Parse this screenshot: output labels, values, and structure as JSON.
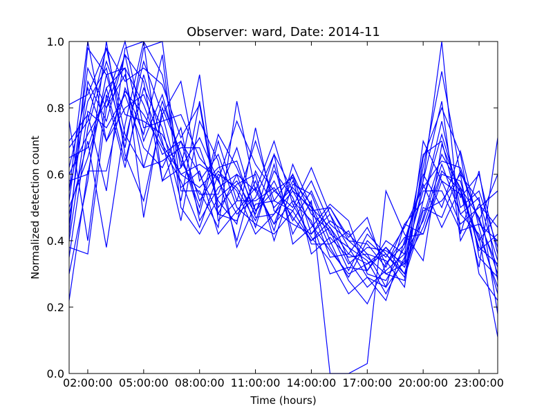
{
  "chart_data": {
    "type": "line",
    "title": "Observer: ward, Date: 2014-11",
    "xlabel": "Time (hours)",
    "ylabel": "Normalized detection count",
    "xlim": [
      1.0,
      24.0
    ],
    "ylim": [
      0.0,
      1.0
    ],
    "x_ticks": [
      2,
      5,
      8,
      11,
      14,
      17,
      20,
      23
    ],
    "x_tick_labels": [
      "02:00:00",
      "05:00:00",
      "08:00:00",
      "11:00:00",
      "14:00:00",
      "17:00:00",
      "20:00:00",
      "23:00:00"
    ],
    "y_ticks": [
      0.0,
      0.2,
      0.4,
      0.6,
      0.8,
      1.0
    ],
    "y_tick_labels": [
      "0.0",
      "0.2",
      "0.4",
      "0.6",
      "0.8",
      "1.0"
    ],
    "grid": false,
    "legend": "none",
    "line_color": "#0000ff",
    "x": [
      1,
      2,
      3,
      4,
      5,
      6,
      7,
      8,
      9,
      10,
      11,
      12,
      13,
      14,
      15,
      16,
      17,
      18,
      19,
      20,
      21,
      22,
      23,
      24
    ],
    "series": [
      {
        "values": [
          0.81,
          0.84,
          0.98,
          0.88,
          0.92,
          0.87,
          0.71,
          0.81,
          0.48,
          0.6,
          0.55,
          0.45,
          0.6,
          0.42,
          0.5,
          0.4,
          0.35,
          0.3,
          0.33,
          0.44,
          0.61,
          0.55,
          0.4,
          0.48
        ]
      },
      {
        "values": [
          0.6,
          0.72,
          0.82,
          1.0,
          0.74,
          0.76,
          0.78,
          0.65,
          0.58,
          0.48,
          0.53,
          0.66,
          0.55,
          0.5,
          0.44,
          0.36,
          0.33,
          0.38,
          0.3,
          0.52,
          0.76,
          0.5,
          0.55,
          0.38
        ]
      },
      {
        "values": [
          0.42,
          0.98,
          0.9,
          0.92,
          0.81,
          0.66,
          0.7,
          0.52,
          0.61,
          0.55,
          0.42,
          0.48,
          0.58,
          0.51,
          0.38,
          0.29,
          0.4,
          0.35,
          0.44,
          0.56,
          0.64,
          0.62,
          0.46,
          0.32
        ]
      },
      {
        "values": [
          0.7,
          0.78,
          0.55,
          0.98,
          1.0,
          0.9,
          0.62,
          0.71,
          0.58,
          0.76,
          0.63,
          0.55,
          0.5,
          0.62,
          0.48,
          0.34,
          0.26,
          0.31,
          0.36,
          0.66,
          0.7,
          0.48,
          0.42,
          0.26
        ]
      },
      {
        "values": [
          0.5,
          0.65,
          0.86,
          0.92,
          0.47,
          0.8,
          0.66,
          0.5,
          0.72,
          0.62,
          0.49,
          0.58,
          0.46,
          0.55,
          0.42,
          0.38,
          0.29,
          0.22,
          0.4,
          0.58,
          0.82,
          0.4,
          0.51,
          0.44
        ]
      },
      {
        "values": [
          0.38,
          0.36,
          0.8,
          0.96,
          0.88,
          0.58,
          0.62,
          0.9,
          0.46,
          0.52,
          0.7,
          0.52,
          0.6,
          0.48,
          0.43,
          0.31,
          0.42,
          0.36,
          0.29,
          0.47,
          0.66,
          0.56,
          0.38,
          0.33
        ]
      },
      {
        "values": [
          0.55,
          0.82,
          0.92,
          0.68,
          0.98,
          1.0,
          0.55,
          0.55,
          0.44,
          0.82,
          0.55,
          0.7,
          0.51,
          0.41,
          0.34,
          0.24,
          0.29,
          0.26,
          0.34,
          0.62,
          0.91,
          0.6,
          0.3,
          0.22
        ]
      },
      {
        "values": [
          0.62,
          0.86,
          0.7,
          0.8,
          0.84,
          0.69,
          0.6,
          0.63,
          0.59,
          0.4,
          0.61,
          0.5,
          0.56,
          0.49,
          0.5,
          0.41,
          0.47,
          0.3,
          0.28,
          0.7,
          0.58,
          0.45,
          0.5,
          0.55
        ]
      },
      {
        "values": [
          0.3,
          0.58,
          1.0,
          0.66,
          0.52,
          0.78,
          0.88,
          0.58,
          0.66,
          0.5,
          0.45,
          0.42,
          0.49,
          0.58,
          0.45,
          0.4,
          0.39,
          0.32,
          0.45,
          0.52,
          0.72,
          0.53,
          0.6,
          0.36
        ]
      },
      {
        "values": [
          0.22,
          0.61,
          0.61,
          0.86,
          0.72,
          0.96,
          0.5,
          0.42,
          0.53,
          0.58,
          0.48,
          0.66,
          0.39,
          0.44,
          0.51,
          0.46,
          0.3,
          0.28,
          0.38,
          0.6,
          0.5,
          0.67,
          0.44,
          0.24
        ]
      },
      {
        "values": [
          0.48,
          0.7,
          0.38,
          0.75,
          1.0,
          0.58,
          0.7,
          0.6,
          0.48,
          0.46,
          0.58,
          0.43,
          0.63,
          0.5,
          0.35,
          0.36,
          0.44,
          0.33,
          0.41,
          0.42,
          0.6,
          0.58,
          0.37,
          0.42
        ]
      },
      {
        "values": [
          0.76,
          0.4,
          0.84,
          0.62,
          0.9,
          0.7,
          0.46,
          0.76,
          0.64,
          0.38,
          0.51,
          0.52,
          0.49,
          0.4,
          0.44,
          0.33,
          0.38,
          0.37,
          0.33,
          0.57,
          0.44,
          0.56,
          0.47,
          0.3
        ]
      },
      {
        "values": [
          0.55,
          1.0,
          0.7,
          0.85,
          0.78,
          0.68,
          0.58,
          0.44,
          0.6,
          0.56,
          0.46,
          0.61,
          0.53,
          0.39,
          0.39,
          0.43,
          0.31,
          0.4,
          0.36,
          0.46,
          0.63,
          0.48,
          0.53,
          0.18
        ]
      },
      {
        "values": [
          0.68,
          0.76,
          0.98,
          0.72,
          0.62,
          0.64,
          0.68,
          0.68,
          0.52,
          0.45,
          0.74,
          0.49,
          0.45,
          0.42,
          0.48,
          0.38,
          0.34,
          0.24,
          0.35,
          0.55,
          0.55,
          0.43,
          0.45,
          0.4
        ]
      },
      {
        "values": [
          0.45,
          0.88,
          0.76,
          0.96,
          0.7,
          0.84,
          0.64,
          0.54,
          0.54,
          0.68,
          0.49,
          0.55,
          0.59,
          0.36,
          0.41,
          0.35,
          0.36,
          0.34,
          0.26,
          0.65,
          0.8,
          0.66,
          0.35,
          0.29
        ]
      },
      {
        "values": [
          0.58,
          0.6,
          0.9,
          0.7,
          0.94,
          0.78,
          0.56,
          0.61,
          0.42,
          0.49,
          0.56,
          0.45,
          0.52,
          0.46,
          0.3,
          0.32,
          0.31,
          0.38,
          0.32,
          0.5,
          0.47,
          0.61,
          0.46,
          0.6
        ]
      },
      {
        "values": [
          0.4,
          0.79,
          0.74,
          0.84,
          0.68,
          0.62,
          0.74,
          0.46,
          0.56,
          0.6,
          0.44,
          0.63,
          0.42,
          0.52,
          0.0,
          0.0,
          0.03,
          0.55,
          0.42,
          0.34,
          0.69,
          0.55,
          0.32,
          0.71
        ]
      },
      {
        "values": [
          0.65,
          0.68,
          0.86,
          0.64,
          0.86,
          0.74,
          0.52,
          0.82,
          0.5,
          0.57,
          0.6,
          0.4,
          0.57,
          0.54,
          0.4,
          0.28,
          0.21,
          0.33,
          0.39,
          0.58,
          1.0,
          0.42,
          0.61,
          0.28
        ]
      },
      {
        "values": [
          0.52,
          0.92,
          0.8,
          0.9,
          0.62,
          0.82,
          0.66,
          0.48,
          0.7,
          0.52,
          0.52,
          0.56,
          0.47,
          0.4,
          0.46,
          0.42,
          0.36,
          0.26,
          0.45,
          0.42,
          0.58,
          0.54,
          0.41,
          0.11
        ]
      },
      {
        "values": [
          0.35,
          0.74,
          0.94,
          0.78,
          0.76,
          0.72,
          0.6,
          0.56,
          0.62,
          0.64,
          0.47,
          0.48,
          0.55,
          0.45,
          0.37,
          0.3,
          0.33,
          0.36,
          0.3,
          0.49,
          0.52,
          0.6,
          0.52,
          0.34
        ]
      }
    ]
  }
}
